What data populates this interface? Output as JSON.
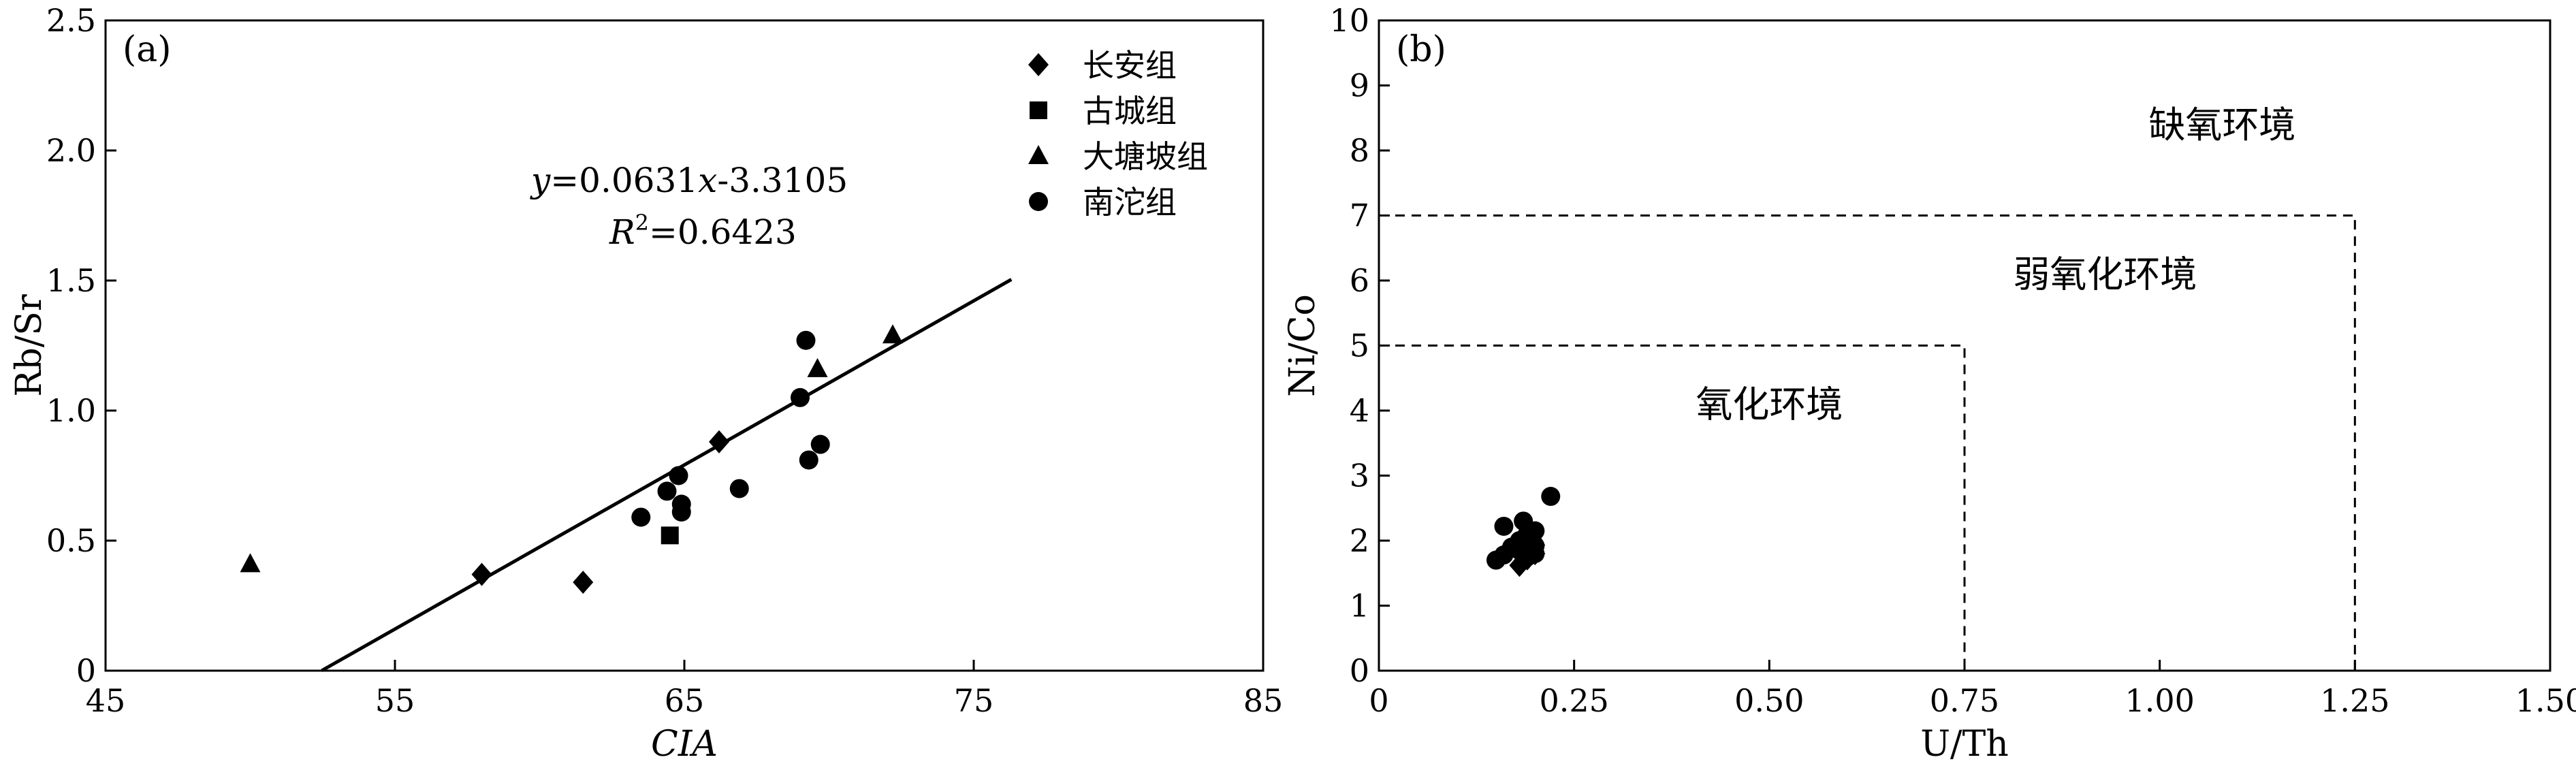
{
  "chart_data": [
    {
      "type": "scatter",
      "panel_label": "(a)",
      "xlabel": "CIA",
      "ylabel": "Rb/Sr",
      "xlim": [
        45,
        85
      ],
      "ylim": [
        0,
        2.5
      ],
      "xticks": [
        45,
        55,
        65,
        75,
        85
      ],
      "xtick_labels": [
        "45",
        "55",
        "65",
        "75",
        "85"
      ],
      "yticks": [
        0,
        0.5,
        1.0,
        1.5,
        2.0,
        2.5
      ],
      "ytick_labels": [
        "0",
        "0.5",
        "1.0",
        "1.5",
        "2.0",
        "2.5"
      ],
      "legend_position": "top-right",
      "series": [
        {
          "name": "长安组",
          "marker": "diamond",
          "points": [
            [
              58.0,
              0.37
            ],
            [
              61.5,
              0.34
            ],
            [
              66.2,
              0.88
            ]
          ]
        },
        {
          "name": "古城组",
          "marker": "square",
          "points": [
            [
              64.5,
              0.52
            ]
          ]
        },
        {
          "name": "大塘坡组",
          "marker": "triangle",
          "points": [
            [
              50.0,
              0.41
            ],
            [
              69.6,
              1.16
            ],
            [
              72.2,
              1.29
            ]
          ]
        },
        {
          "name": "南沱组",
          "marker": "circle",
          "points": [
            [
              63.5,
              0.59
            ],
            [
              64.4,
              0.69
            ],
            [
              64.8,
              0.75
            ],
            [
              64.9,
              0.61
            ],
            [
              64.9,
              0.64
            ],
            [
              66.9,
              0.7
            ],
            [
              69.0,
              1.05
            ],
            [
              69.2,
              1.27
            ],
            [
              69.3,
              0.81
            ],
            [
              69.7,
              0.87
            ]
          ]
        }
      ],
      "trendline": {
        "slope": 0.0631,
        "intercept": -3.3105,
        "x_range": [
          52.47,
          76.3
        ]
      },
      "equation_text": {
        "y_var": "y",
        "eq1": "=0.0631",
        "x_var": "x",
        "eq2": "-3.3105",
        "r_var": "R",
        "r_sup": "2",
        "r_rest": "=0.6423"
      }
    },
    {
      "type": "scatter",
      "panel_label": "(b)",
      "xlabel": "U/Th",
      "ylabel": "Ni/Co",
      "xlim": [
        0,
        1.5
      ],
      "ylim": [
        0,
        10
      ],
      "xticks": [
        0,
        0.25,
        0.5,
        0.75,
        1.0,
        1.25,
        1.5
      ],
      "xtick_labels": [
        "0",
        "0.25",
        "0.50",
        "0.75",
        "1.00",
        "1.25",
        "1.50"
      ],
      "yticks": [
        0,
        1,
        2,
        3,
        4,
        5,
        6,
        7,
        8,
        9,
        10
      ],
      "ytick_labels": [
        "0",
        "1",
        "2",
        "3",
        "4",
        "5",
        "6",
        "7",
        "8",
        "9",
        "10"
      ],
      "boundaries": [
        {
          "x_max": 0.75,
          "y_max": 5
        },
        {
          "x_max": 1.25,
          "y_max": 7
        }
      ],
      "regions": [
        {
          "label": "氧化环境",
          "x": 0.5,
          "y": 3.9
        },
        {
          "label": "弱氧化环境",
          "x": 0.93,
          "y": 5.9
        },
        {
          "label": "缺氧环境",
          "x": 1.08,
          "y": 8.2
        }
      ],
      "series": [
        {
          "name": "长安组",
          "marker": "diamond",
          "points": [
            [
              0.18,
              1.62
            ],
            [
              0.19,
              1.72
            ],
            [
              0.2,
              1.8
            ]
          ]
        },
        {
          "name": "大塘坡组",
          "marker": "triangle",
          "points": [
            [
              0.19,
              1.95
            ],
            [
              0.2,
              2.05
            ]
          ]
        },
        {
          "name": "南沱组",
          "marker": "circle",
          "points": [
            [
              0.15,
              1.7
            ],
            [
              0.16,
              1.78
            ],
            [
              0.16,
              2.22
            ],
            [
              0.17,
              1.9
            ],
            [
              0.18,
              1.85
            ],
            [
              0.18,
              2.0
            ],
            [
              0.185,
              2.3
            ],
            [
              0.19,
              1.75
            ],
            [
              0.19,
              2.1
            ],
            [
              0.2,
              1.92
            ],
            [
              0.2,
              1.8
            ],
            [
              0.2,
              2.15
            ],
            [
              0.22,
              2.68
            ]
          ]
        }
      ]
    }
  ]
}
